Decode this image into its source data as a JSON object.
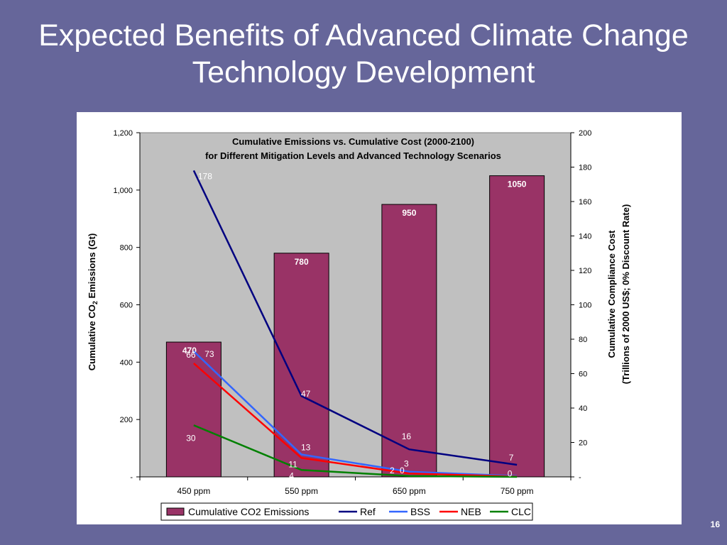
{
  "slide": {
    "title_line1": "Expected Benefits of Advanced Climate Change",
    "title_line2": "Technology Development",
    "page_number": "16",
    "background_color": "#66669a"
  },
  "chart_data": {
    "type": "bar",
    "title_line1": "Cumulative Emissions vs. Cumulative Cost (2000-2100)",
    "title_line2": "for Different Mitigation Levels and Advanced Technology Scenarios",
    "categories": [
      "450 ppm",
      "550 ppm",
      "650 ppm",
      "750 ppm"
    ],
    "ylabel_left_parts": [
      "Cumulative CO",
      "2",
      " Emissions (Gt)"
    ],
    "ylabel_right_line1": "Cumulative Compliance Cost",
    "ylabel_right_line2": "(Trillions of 2000 US$; 0% Discount Rate)",
    "ylim_left": [
      0,
      1200
    ],
    "ylim_right": [
      0,
      200
    ],
    "yticks_left": [
      {
        "value": 0,
        "label": "-"
      },
      {
        "value": 200,
        "label": "200"
      },
      {
        "value": 400,
        "label": "400"
      },
      {
        "value": 600,
        "label": "600"
      },
      {
        "value": 800,
        "label": "800"
      },
      {
        "value": 1000,
        "label": "1,000"
      },
      {
        "value": 1200,
        "label": "1,200"
      }
    ],
    "yticks_right": [
      {
        "value": 0,
        "label": "-"
      },
      {
        "value": 20,
        "label": "20"
      },
      {
        "value": 40,
        "label": "40"
      },
      {
        "value": 60,
        "label": "60"
      },
      {
        "value": 80,
        "label": "80"
      },
      {
        "value": 100,
        "label": "100"
      },
      {
        "value": 120,
        "label": "120"
      },
      {
        "value": 140,
        "label": "140"
      },
      {
        "value": 160,
        "label": "160"
      },
      {
        "value": 180,
        "label": "180"
      },
      {
        "value": 200,
        "label": "200"
      }
    ],
    "bars": {
      "name": "Cumulative CO2 Emissions",
      "values": [
        470,
        780,
        950,
        1050
      ],
      "labels": [
        "470",
        "780",
        "950",
        "1050"
      ],
      "color": "#993366"
    },
    "lines": [
      {
        "name": "Ref",
        "color": "#000080",
        "values": [
          178,
          47,
          16,
          7
        ],
        "labels": [
          "178",
          "47",
          "16",
          "7"
        ]
      },
      {
        "name": "BSS",
        "color": "#3366ff",
        "values": [
          73,
          13,
          3,
          0.5
        ],
        "labels": [
          "73",
          "13",
          "3",
          ""
        ]
      },
      {
        "name": "NEB",
        "color": "#ff0000",
        "values": [
          66,
          11,
          2,
          0.2
        ],
        "labels": [
          "66",
          "11",
          "2",
          "0"
        ]
      },
      {
        "name": "CLC",
        "color": "#008000",
        "values": [
          30,
          4,
          0.5,
          0
        ],
        "labels": [
          "30",
          "4",
          "0",
          ""
        ]
      }
    ],
    "plot_background": "#c0c0c0",
    "grid": false,
    "legend_position": "bottom"
  }
}
